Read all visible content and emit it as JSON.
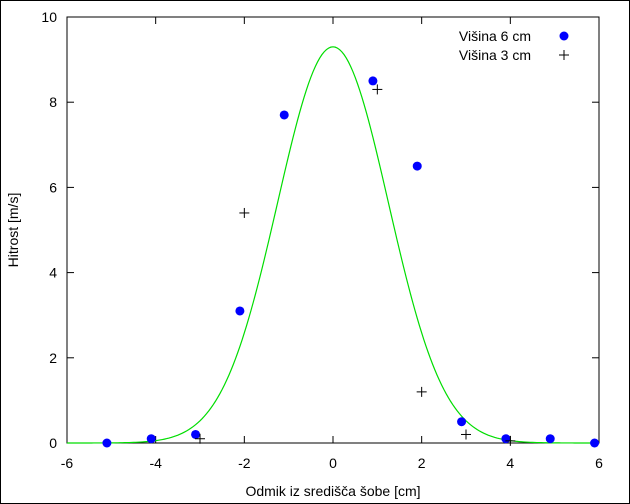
{
  "chart_data": {
    "type": "scatter",
    "title": "",
    "xlabel": "Odmik iz središča šobe [cm]",
    "ylabel": "Hitrost [m/s]",
    "xlim": [
      -6,
      6
    ],
    "ylim": [
      0,
      10
    ],
    "xticks": [
      -6,
      -4,
      -2,
      0,
      2,
      4,
      6
    ],
    "yticks": [
      0,
      2,
      4,
      6,
      8,
      10
    ],
    "grid": false,
    "legend_position": "top-right",
    "series": [
      {
        "name": "Višina 6 cm",
        "marker": "filled-circle",
        "color": "#0000ff",
        "x": [
          -5.1,
          -4.1,
          -3.1,
          -2.1,
          -1.1,
          0.9,
          1.9,
          2.9,
          3.9,
          4.9,
          5.9
        ],
        "y": [
          0.0,
          0.1,
          0.2,
          3.1,
          7.7,
          8.5,
          6.5,
          0.5,
          0.1,
          0.1,
          0.0
        ]
      },
      {
        "name": "Višina 3 cm",
        "marker": "plus",
        "color": "#000000",
        "x": [
          -3.0,
          -2.0,
          1.0,
          2.0,
          3.0,
          4.0
        ],
        "y": [
          0.1,
          5.4,
          8.3,
          1.2,
          0.2,
          0.05
        ]
      }
    ],
    "fit_curve": {
      "type": "gaussian",
      "color": "#00dd00",
      "amplitude": 9.3,
      "center": 0.0,
      "sigma": 1.25
    }
  }
}
